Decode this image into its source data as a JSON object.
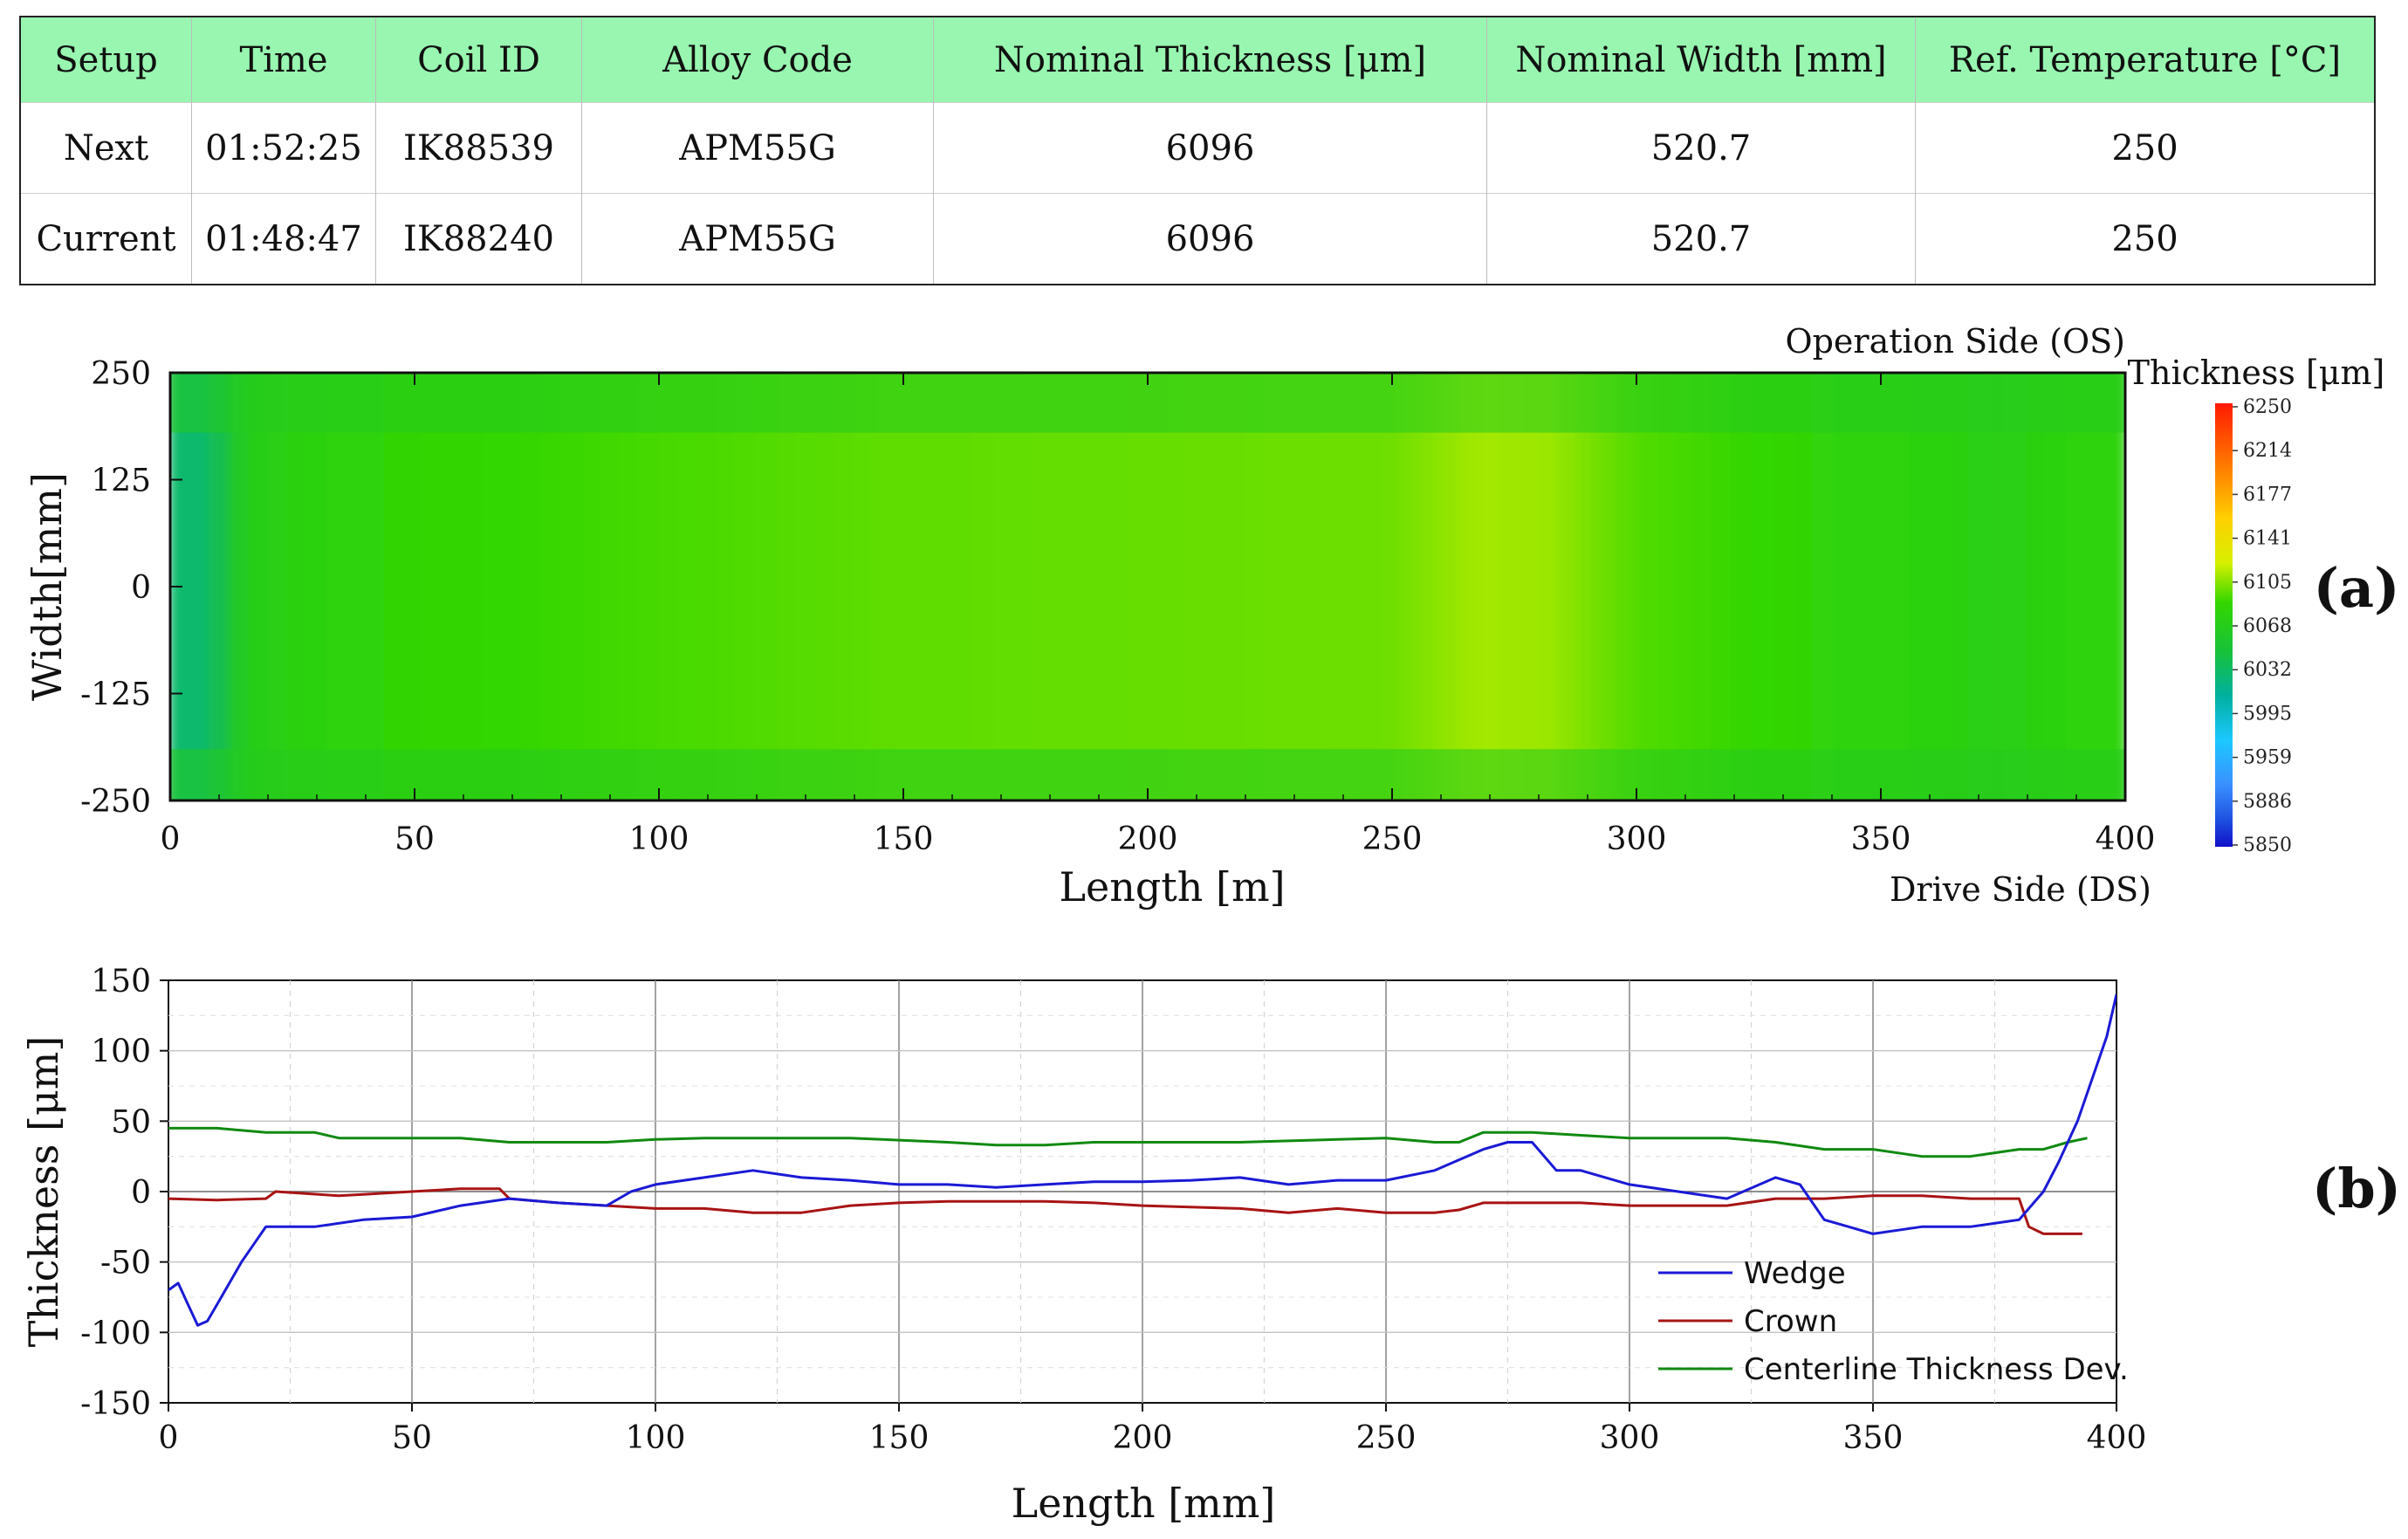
{
  "table": {
    "headers": [
      "Setup",
      "Time",
      "Coil ID",
      "Alloy Code",
      "Nominal Thickness  [μm]",
      "Nominal Width [mm]",
      "Ref. Temperature  [°C]"
    ],
    "rows": [
      [
        "Next",
        "01:52:25",
        "IK88539",
        "APM55G",
        "6096",
        "520.7",
        "250"
      ],
      [
        "Current",
        "01:48:47",
        "IK88240",
        "APM55G",
        "6096",
        "520.7",
        "250"
      ]
    ]
  },
  "chart_data": [
    {
      "type": "heatmap",
      "panel": "(a)",
      "xlabel": "Length [m]",
      "ylabel": "Width[mm]",
      "xlim": [
        0,
        400
      ],
      "ylim": [
        -250,
        250
      ],
      "xticks": [
        "0",
        "50",
        "100",
        "150",
        "200",
        "250",
        "300",
        "350",
        "400"
      ],
      "yticks": [
        "250",
        "125",
        "0",
        "-125",
        "-250"
      ],
      "top_label": "Operation Side (OS)",
      "bottom_label": "Drive Side (DS)",
      "colorbar": {
        "title": "Thickness [μm]",
        "ticks": [
          "6250",
          "6214",
          "6177",
          "6141",
          "6105",
          "6068",
          "6032",
          "5995",
          "5959",
          "5886",
          "5850"
        ],
        "colors": [
          "#ff1a00",
          "#ff7a00",
          "#ffd000",
          "#d6f000",
          "#33d600",
          "#17c23a",
          "#00b0a0",
          "#1cc8ff",
          "#3a90ff",
          "#1e50e0",
          "#1010c8"
        ]
      },
      "length_profile": {
        "x": [
          0,
          8,
          16,
          40,
          90,
          150,
          200,
          250,
          268,
          282,
          300,
          340,
          375,
          395,
          400
        ],
        "thickness": [
          6050,
          6050,
          6090,
          6100,
          6108,
          6115,
          6116,
          6118,
          6130,
          6128,
          6112,
          6100,
          6092,
          6100,
          6100
        ]
      },
      "edge_band_thickness": 6085
    },
    {
      "type": "line",
      "panel": "(b)",
      "xlabel": "Length [mm]",
      "ylabel": "Thickness [μm]",
      "xlim": [
        0,
        400
      ],
      "ylim": [
        -150,
        150
      ],
      "xticks": [
        "0",
        "50",
        "100",
        "150",
        "200",
        "250",
        "300",
        "350",
        "400"
      ],
      "yticks": [
        "150",
        "100",
        "50",
        "0",
        "-50",
        "-100",
        "-150"
      ],
      "grid": true,
      "legend_position": "bottom-right",
      "series": [
        {
          "name": "Wedge",
          "color": "#1a1ad6",
          "x": [
            0,
            2,
            4,
            6,
            8,
            10,
            15,
            20,
            30,
            40,
            50,
            60,
            70,
            80,
            90,
            95,
            100,
            110,
            120,
            130,
            140,
            150,
            160,
            170,
            180,
            190,
            200,
            210,
            220,
            230,
            240,
            250,
            260,
            270,
            275,
            280,
            285,
            290,
            300,
            310,
            320,
            330,
            335,
            340,
            345,
            350,
            360,
            370,
            380,
            385,
            388,
            392,
            395,
            398,
            400
          ],
          "y": [
            -70,
            -65,
            -80,
            -95,
            -92,
            -80,
            -50,
            -25,
            -25,
            -20,
            -18,
            -10,
            -5,
            -8,
            -10,
            0,
            5,
            10,
            15,
            10,
            8,
            5,
            5,
            3,
            5,
            7,
            7,
            8,
            10,
            5,
            8,
            8,
            15,
            30,
            35,
            35,
            15,
            15,
            5,
            0,
            -5,
            10,
            5,
            -20,
            -25,
            -30,
            -25,
            -25,
            -20,
            0,
            20,
            50,
            80,
            110,
            140
          ]
        },
        {
          "name": "Crown",
          "color": "#a81414",
          "x": [
            0,
            10,
            20,
            22,
            35,
            40,
            50,
            60,
            68,
            70,
            80,
            90,
            100,
            110,
            120,
            130,
            140,
            150,
            160,
            180,
            190,
            200,
            220,
            230,
            240,
            250,
            260,
            265,
            270,
            280,
            290,
            300,
            310,
            320,
            330,
            340,
            350,
            360,
            370,
            380,
            382,
            385,
            393
          ],
          "y": [
            -5,
            -6,
            -5,
            0,
            -3,
            -2,
            0,
            2,
            2,
            -5,
            -8,
            -10,
            -12,
            -12,
            -15,
            -15,
            -10,
            -8,
            -7,
            -7,
            -8,
            -10,
            -12,
            -15,
            -12,
            -15,
            -15,
            -13,
            -8,
            -8,
            -8,
            -10,
            -10,
            -10,
            -5,
            -5,
            -3,
            -3,
            -5,
            -5,
            -25,
            -30,
            -30
          ]
        },
        {
          "name": "Centerline Thickness Dev.",
          "color": "#108a10",
          "x": [
            0,
            10,
            20,
            30,
            35,
            50,
            60,
            70,
            90,
            100,
            110,
            120,
            140,
            160,
            170,
            180,
            190,
            200,
            220,
            240,
            250,
            260,
            265,
            270,
            280,
            290,
            300,
            320,
            330,
            340,
            350,
            360,
            370,
            380,
            385,
            390,
            394
          ],
          "y": [
            45,
            45,
            42,
            42,
            38,
            38,
            38,
            35,
            35,
            37,
            38,
            38,
            38,
            35,
            33,
            33,
            35,
            35,
            35,
            37,
            38,
            35,
            35,
            42,
            42,
            40,
            38,
            38,
            35,
            30,
            30,
            25,
            25,
            30,
            30,
            35,
            38
          ]
        }
      ]
    }
  ]
}
